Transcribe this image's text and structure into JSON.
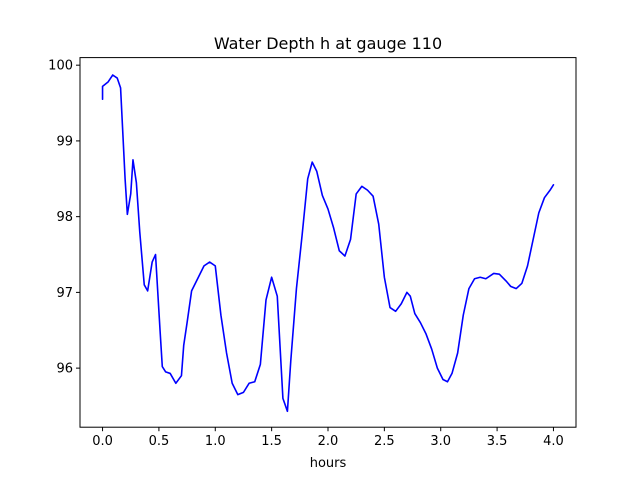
{
  "chart_data": {
    "type": "line",
    "title": "Water Depth h at gauge 110",
    "xlabel": "hours",
    "ylabel": "",
    "xlim": [
      -0.2,
      4.2
    ],
    "ylim": [
      95.22,
      100.1
    ],
    "xticks": [
      0.0,
      0.5,
      1.0,
      1.5,
      2.0,
      2.5,
      3.0,
      3.5,
      4.0
    ],
    "xtick_labels": [
      "0.0",
      "0.5",
      "1.0",
      "1.5",
      "2.0",
      "2.5",
      "3.0",
      "3.5",
      "4.0"
    ],
    "yticks": [
      96,
      97,
      98,
      99,
      100
    ],
    "ytick_labels": [
      "96",
      "97",
      "98",
      "99",
      "100"
    ],
    "grid": false,
    "series": [
      {
        "color": "#0000ff",
        "x": [
          0.0,
          0.0,
          0.05,
          0.09,
          0.13,
          0.16,
          0.2,
          0.22,
          0.25,
          0.27,
          0.3,
          0.33,
          0.37,
          0.4,
          0.44,
          0.47,
          0.51,
          0.53,
          0.56,
          0.6,
          0.65,
          0.7,
          0.72,
          0.75,
          0.79,
          0.85,
          0.9,
          0.95,
          1.0,
          1.05,
          1.1,
          1.15,
          1.2,
          1.25,
          1.3,
          1.35,
          1.4,
          1.45,
          1.5,
          1.55,
          1.6,
          1.64,
          1.67,
          1.72,
          1.77,
          1.82,
          1.86,
          1.9,
          1.95,
          2.0,
          2.05,
          2.1,
          2.15,
          2.2,
          2.25,
          2.3,
          2.35,
          2.4,
          2.45,
          2.5,
          2.55,
          2.6,
          2.65,
          2.7,
          2.73,
          2.77,
          2.82,
          2.87,
          2.92,
          2.97,
          3.02,
          3.06,
          3.1,
          3.15,
          3.2,
          3.25,
          3.3,
          3.35,
          3.4,
          3.47,
          3.52,
          3.58,
          3.62,
          3.67,
          3.72,
          3.77,
          3.82,
          3.87,
          3.92,
          3.97,
          4.0
        ],
        "values": [
          99.55,
          99.72,
          99.78,
          99.87,
          99.83,
          99.7,
          98.5,
          98.03,
          98.3,
          98.75,
          98.45,
          97.8,
          97.1,
          97.02,
          97.4,
          97.5,
          96.5,
          96.02,
          95.95,
          95.93,
          95.8,
          95.9,
          96.3,
          96.6,
          97.02,
          97.2,
          97.35,
          97.4,
          97.35,
          96.7,
          96.2,
          95.8,
          95.65,
          95.68,
          95.8,
          95.82,
          96.05,
          96.9,
          97.2,
          96.95,
          95.6,
          95.43,
          96.1,
          97.05,
          97.75,
          98.5,
          98.72,
          98.6,
          98.28,
          98.1,
          97.85,
          97.55,
          97.48,
          97.7,
          98.3,
          98.4,
          98.35,
          98.27,
          97.9,
          97.2,
          96.8,
          96.75,
          96.85,
          97.0,
          96.95,
          96.72,
          96.6,
          96.45,
          96.25,
          96.0,
          95.85,
          95.82,
          95.93,
          96.2,
          96.7,
          97.05,
          97.18,
          97.2,
          97.18,
          97.25,
          97.24,
          97.15,
          97.08,
          97.05,
          97.12,
          97.35,
          97.7,
          98.05,
          98.25,
          98.35,
          98.42
        ]
      }
    ]
  }
}
